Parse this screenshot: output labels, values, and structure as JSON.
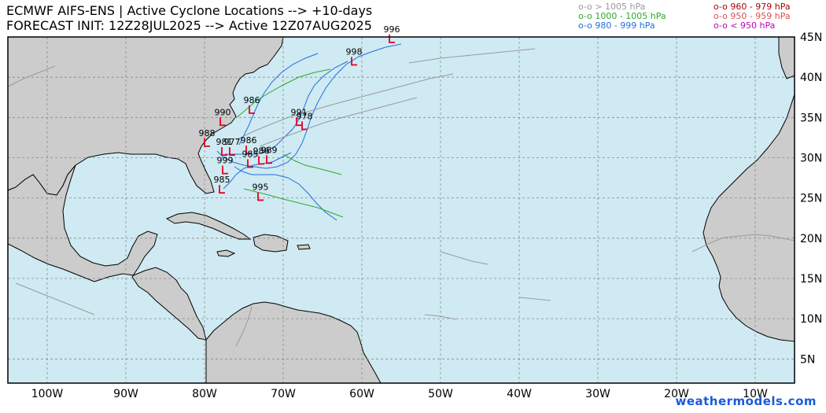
{
  "header": {
    "title_line1": "ECMWF AIFS-ENS | Active Cyclone Locations --> +10-days",
    "title_line2": "FORECAST INIT: 12Z28JUL2025 --> Active 12Z07AUG2025"
  },
  "legend": {
    "items": [
      {
        "label": "o-o > 1005 hPa",
        "color": "#9a9a9a"
      },
      {
        "label": "o-o 1000 - 1005 hPa",
        "color": "#2ea82e"
      },
      {
        "label": "o-o 980 - 999 hPa",
        "color": "#1f6fe0"
      },
      {
        "label": "o-o 960 - 979 hPa",
        "color": "#b00000"
      },
      {
        "label": "o-o 950 - 959 hPa",
        "color": "#e05050"
      },
      {
        "label": "o-o < 950 hPa",
        "color": "#c000c0"
      }
    ]
  },
  "axes": {
    "lon_labels": [
      "100W",
      "90W",
      "80W",
      "70W",
      "60W",
      "50W",
      "40W",
      "30W",
      "20W",
      "10W"
    ],
    "lon_values": [
      -100,
      -90,
      -80,
      -70,
      -60,
      -50,
      -40,
      -30,
      -20,
      -10
    ],
    "lat_labels": [
      "45N",
      "40N",
      "35N",
      "30N",
      "25N",
      "20N",
      "15N",
      "10N",
      "5N"
    ],
    "lat_values": [
      45,
      40,
      35,
      30,
      25,
      20,
      15,
      10,
      5
    ],
    "lon_range": [
      -105,
      -5
    ],
    "lat_range": [
      2,
      45
    ],
    "grid": true
  },
  "colors": {
    "ocean": "#cfeaf2",
    "land": "#cccccc",
    "low_marker": "#e8001c",
    "track_blue": "#1f6fe0",
    "track_green": "#2ea82e",
    "track_gray": "#9a9a9a"
  },
  "pressure_labels": [
    {
      "text": "996",
      "lon": -56.2,
      "lat": 45.6
    },
    {
      "text": "998",
      "lon": -61.0,
      "lat": 42.8
    },
    {
      "text": "986",
      "lon": -74.0,
      "lat": 36.8
    },
    {
      "text": "990",
      "lon": -77.7,
      "lat": 35.3
    },
    {
      "text": "991",
      "lon": -68.0,
      "lat": 35.3
    },
    {
      "text": "978",
      "lon": -67.3,
      "lat": 34.8
    },
    {
      "text": "988",
      "lon": -79.7,
      "lat": 32.7
    },
    {
      "text": "981",
      "lon": -77.5,
      "lat": 31.6
    },
    {
      "text": "977",
      "lon": -76.5,
      "lat": 31.6
    },
    {
      "text": "986",
      "lon": -74.4,
      "lat": 31.8
    },
    {
      "text": "986",
      "lon": -72.8,
      "lat": 30.5
    },
    {
      "text": "989",
      "lon": -71.8,
      "lat": 30.6
    },
    {
      "text": "985",
      "lon": -74.2,
      "lat": 30.1
    },
    {
      "text": "999",
      "lon": -77.4,
      "lat": 29.3
    },
    {
      "text": "985",
      "lon": -77.8,
      "lat": 26.9
    },
    {
      "text": "995",
      "lon": -72.9,
      "lat": 26.0
    }
  ]
}
